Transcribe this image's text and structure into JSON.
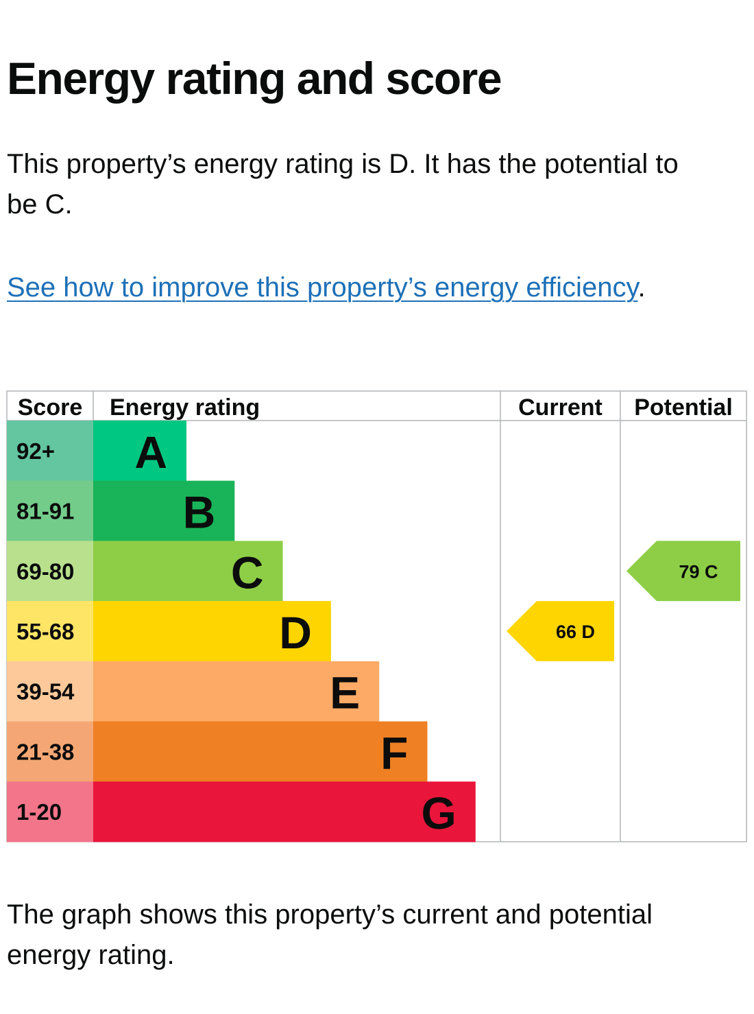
{
  "page": {
    "title": "Energy rating and score",
    "intro": "This property’s energy rating is D. It has the potential to be C.",
    "improve_link": "See how to improve this property’s energy efficiency",
    "improve_suffix": ".",
    "caption": "The graph shows this property’s current and potential energy rating."
  },
  "chart_data": {
    "type": "bar",
    "columns": {
      "score": "Score",
      "rating": "Energy rating",
      "current": "Current",
      "potential": "Potential"
    },
    "bands": [
      {
        "letter": "A",
        "range": "92+",
        "color": "#00c781",
        "score_color": "#63c6a0"
      },
      {
        "letter": "B",
        "range": "81-91",
        "color": "#19b459",
        "score_color": "#73cc8a"
      },
      {
        "letter": "C",
        "range": "69-80",
        "color": "#8dce46",
        "score_color": "#b8e08d"
      },
      {
        "letter": "D",
        "range": "55-68",
        "color": "#ffd500",
        "score_color": "#ffe566"
      },
      {
        "letter": "E",
        "range": "39-54",
        "color": "#fcaa65",
        "score_color": "#fdc99a"
      },
      {
        "letter": "F",
        "range": "21-38",
        "color": "#ef8023",
        "score_color": "#f4a774"
      },
      {
        "letter": "G",
        "range": "1-20",
        "color": "#e9153b",
        "score_color": "#f2758a"
      }
    ],
    "current": {
      "score": 66,
      "letter": "D",
      "text": "66  D"
    },
    "potential": {
      "score": 79,
      "letter": "C",
      "text": "79  C"
    }
  }
}
